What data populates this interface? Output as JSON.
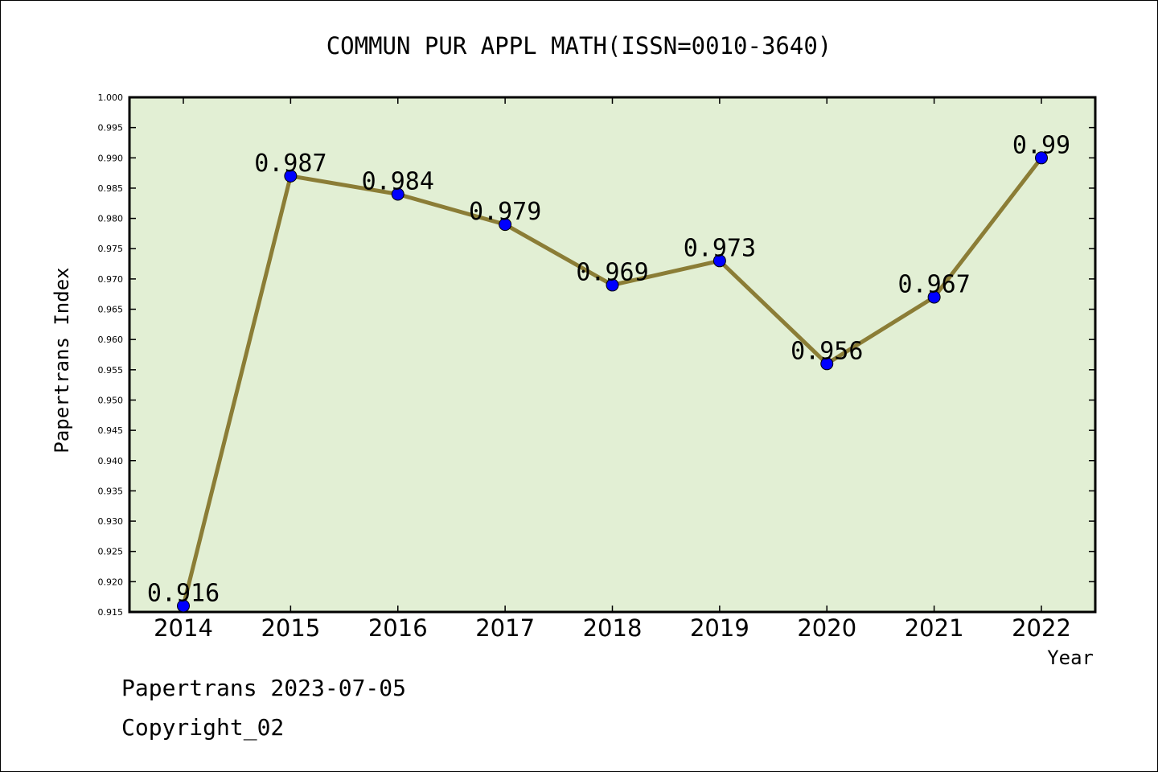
{
  "footer": {
    "line1": "Papertrans 2023-07-05",
    "line2": "Copyright_02"
  },
  "chart_data": {
    "type": "line",
    "title": "COMMUN PUR APPL MATH(ISSN=0010-3640)",
    "xlabel": "Year",
    "ylabel": "Papertrans Index",
    "categories": [
      "2014",
      "2015",
      "2016",
      "2017",
      "2018",
      "2019",
      "2020",
      "2021",
      "2022"
    ],
    "series": [
      {
        "values": [
          0.916,
          0.987,
          0.984,
          0.979,
          0.969,
          0.973,
          0.956,
          0.967,
          0.99
        ],
        "labels": [
          "0.916",
          "0.987",
          "0.984",
          "0.979",
          "0.969",
          "0.973",
          "0.956",
          "0.967",
          "0.99"
        ]
      }
    ],
    "ylim": [
      0.915,
      1.0
    ],
    "yticks": [
      "0.915",
      "0.920",
      "0.925",
      "0.930",
      "0.935",
      "0.940",
      "0.945",
      "0.950",
      "0.955",
      "0.960",
      "0.965",
      "0.970",
      "0.975",
      "0.980",
      "0.985",
      "0.990",
      "0.995",
      "1.000"
    ],
    "grid": false,
    "colors": {
      "plot_background": "#e2efd4",
      "line": "#8b7d36",
      "marker": "#0000ff"
    }
  }
}
